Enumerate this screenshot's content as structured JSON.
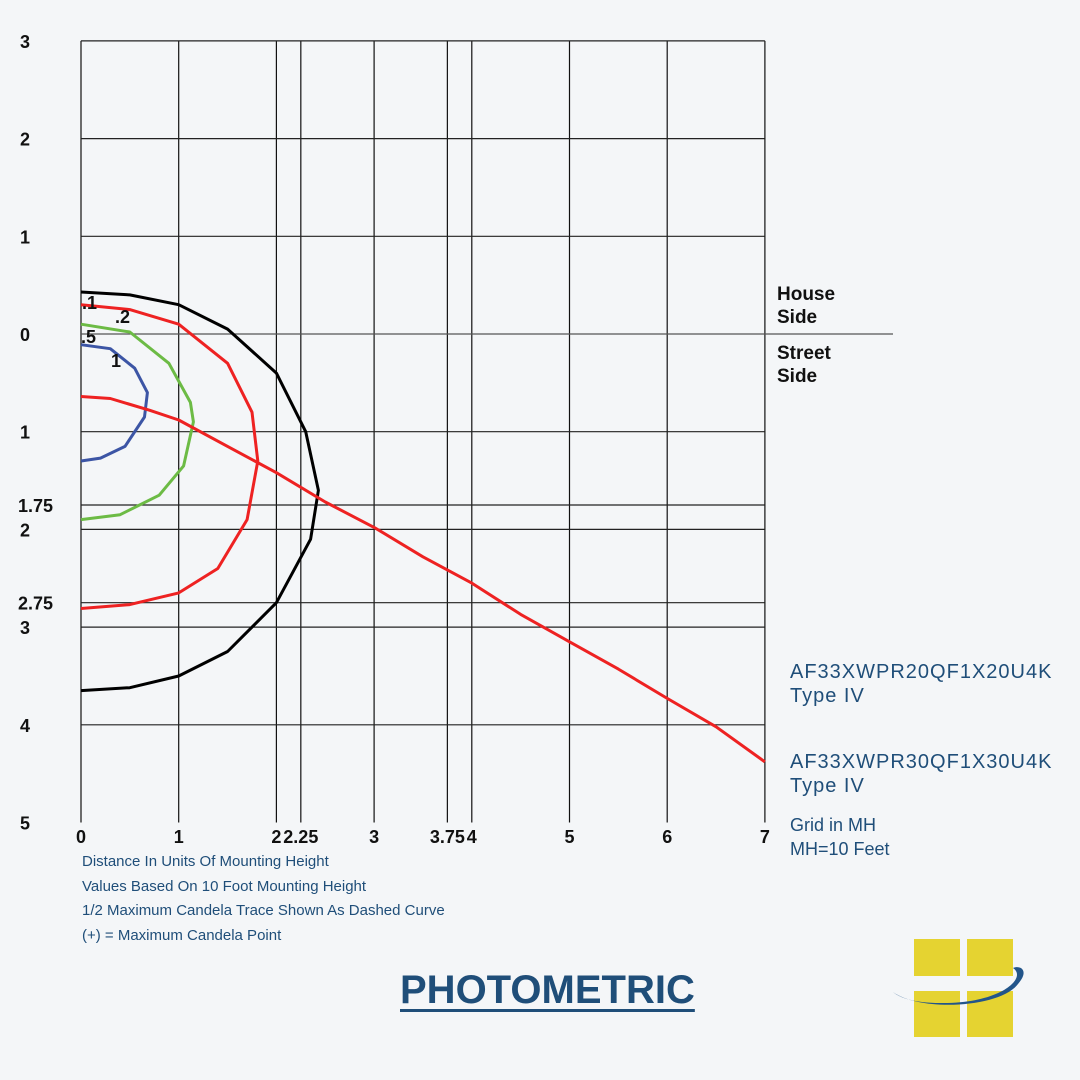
{
  "chart_data": {
    "type": "line",
    "title": "PHOTOMETRIC",
    "xlabel": "Distance In Units Of Mounting Height",
    "x_ticks": [
      0,
      1,
      2,
      2.25,
      3,
      3.75,
      4,
      5,
      6,
      7
    ],
    "x_tick_labels": [
      "0",
      "1",
      "2",
      "2.25",
      "3",
      "3.75",
      "4",
      "5",
      "6",
      "7"
    ],
    "y_ticks": [
      -3,
      -2,
      -1,
      0,
      1,
      1.75,
      2,
      2.75,
      3,
      4,
      5
    ],
    "y_tick_labels": [
      "3",
      "2",
      "1",
      "0",
      "1",
      "1.75",
      "2",
      "2.75",
      "3",
      "4",
      "5"
    ],
    "xlim": [
      0,
      7
    ],
    "ylim": [
      -3,
      5
    ],
    "grid": true,
    "house_side_label": [
      "House",
      "Side"
    ],
    "street_side_label": [
      "Street",
      "Side"
    ],
    "series": [
      {
        "name": ".1",
        "color": "#000000",
        "points": [
          [
            0,
            -0.43
          ],
          [
            0.5,
            -0.4
          ],
          [
            1,
            -0.3
          ],
          [
            1.5,
            -0.05
          ],
          [
            2,
            0.4
          ],
          [
            2.3,
            1.0
          ],
          [
            2.43,
            1.6
          ],
          [
            2.35,
            2.1
          ],
          [
            2,
            2.75
          ],
          [
            1.5,
            3.25
          ],
          [
            1,
            3.5
          ],
          [
            0.5,
            3.62
          ],
          [
            0,
            3.65
          ]
        ]
      },
      {
        "name": ".2",
        "color": "#ee2222",
        "points": [
          [
            0,
            -0.3
          ],
          [
            0.5,
            -0.25
          ],
          [
            1,
            -0.1
          ],
          [
            1.5,
            0.3
          ],
          [
            1.75,
            0.8
          ],
          [
            1.81,
            1.3
          ],
          [
            1.7,
            1.9
          ],
          [
            1.4,
            2.4
          ],
          [
            1,
            2.65
          ],
          [
            0.5,
            2.77
          ],
          [
            0,
            2.81
          ]
        ]
      },
      {
        "name": ".5",
        "color": "#6cbb45",
        "points": [
          [
            0,
            -0.1
          ],
          [
            0.5,
            -0.02
          ],
          [
            0.9,
            0.3
          ],
          [
            1.12,
            0.7
          ],
          [
            1.15,
            0.9
          ],
          [
            1.05,
            1.35
          ],
          [
            0.8,
            1.65
          ],
          [
            0.4,
            1.85
          ],
          [
            0,
            1.9
          ]
        ]
      },
      {
        "name": "1",
        "color": "#3c55a5",
        "points": [
          [
            0,
            0.11
          ],
          [
            0.3,
            0.15
          ],
          [
            0.55,
            0.35
          ],
          [
            0.68,
            0.6
          ],
          [
            0.65,
            0.85
          ],
          [
            0.45,
            1.15
          ],
          [
            0.2,
            1.27
          ],
          [
            0,
            1.3
          ]
        ]
      },
      {
        "name": "max-candela-trace",
        "color": "#ee2222",
        "points": [
          [
            0,
            0.64
          ],
          [
            0.3,
            0.66
          ],
          [
            0.7,
            0.78
          ],
          [
            1,
            0.88
          ],
          [
            1.5,
            1.15
          ],
          [
            2,
            1.42
          ],
          [
            2.5,
            1.72
          ],
          [
            3,
            1.98
          ],
          [
            3.5,
            2.28
          ],
          [
            4,
            2.55
          ],
          [
            4.5,
            2.87
          ],
          [
            5,
            3.15
          ],
          [
            5.5,
            3.43
          ],
          [
            6,
            3.73
          ],
          [
            6.5,
            4.02
          ],
          [
            7,
            4.38
          ]
        ]
      }
    ],
    "contour_labels": [
      ".1",
      ".2",
      ".5",
      "1"
    ]
  },
  "models": [
    {
      "name": "AF33XWPR20QF1X20U4K",
      "type": "Type IV"
    },
    {
      "name": "AF33XWPR30QF1X30U4K",
      "type": "Type IV"
    }
  ],
  "grid_note": [
    "Grid in MH",
    "MH=10 Feet"
  ],
  "notes": [
    "Distance In Units Of Mounting Height",
    "Values Based On 10 Foot Mounting Height",
    "1/2 Maximum Candela Trace Shown As Dashed Curve",
    "(+) = Maximum Candela Point"
  ],
  "colors": {
    "brand": "#1f4e79",
    "logo_yellow": "#e5d331"
  }
}
